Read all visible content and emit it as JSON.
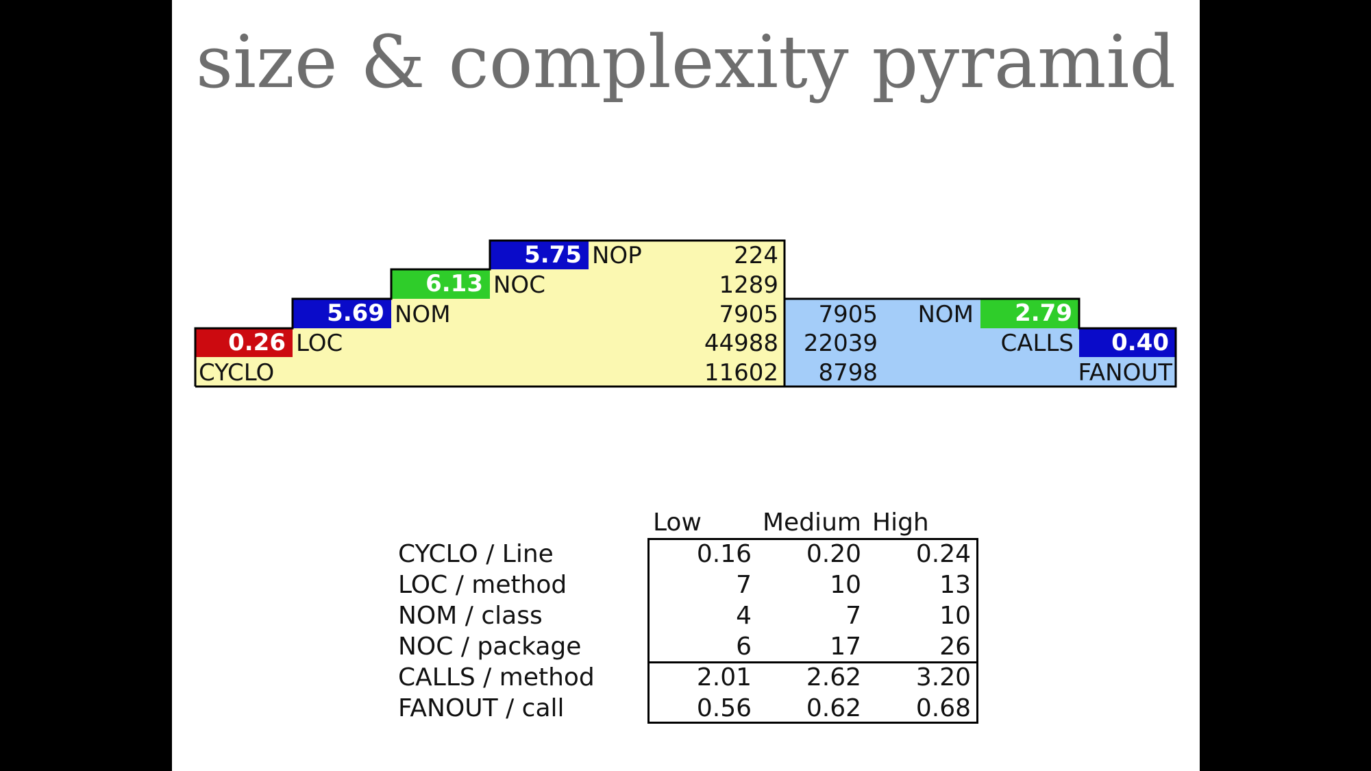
{
  "title": "size & complexity pyramid",
  "pyramid": {
    "left": {
      "NOP": {
        "label": "NOP",
        "value": "224",
        "ratio": "5.75"
      },
      "NOC": {
        "label": "NOC",
        "value": "1289",
        "ratio": "6.13"
      },
      "NOM": {
        "label": "NOM",
        "value": "7905",
        "ratio": "5.69"
      },
      "LOC": {
        "label": "LOC",
        "value": "44988",
        "ratio": "0.26"
      },
      "CYCLO": {
        "label": "CYCLO",
        "value": "11602"
      }
    },
    "right": {
      "NOM": {
        "label": "NOM",
        "value": "7905",
        "ratio": "2.79"
      },
      "CALLS": {
        "label": "CALLS",
        "value": "22039",
        "ratio": "0.40"
      },
      "FANOUT": {
        "label": "FANOUT",
        "value": "8798"
      }
    }
  },
  "colors": {
    "blue": "#0a0bc9",
    "green": "#2fcd2a",
    "red": "#cc0a10",
    "yellow": "#fbf8b1",
    "lightblue": "#a4cdf9"
  },
  "thresholds": {
    "headers": [
      "Low",
      "Medium",
      "High"
    ],
    "rows": [
      {
        "label": "CYCLO / Line",
        "low": "0.16",
        "medium": "0.20",
        "high": "0.24"
      },
      {
        "label": "LOC / method",
        "low": "7",
        "medium": "10",
        "high": "13"
      },
      {
        "label": "NOM / class",
        "low": "4",
        "medium": "7",
        "high": "10"
      },
      {
        "label": "NOC / package",
        "low": "6",
        "medium": "17",
        "high": "26"
      },
      {
        "label": "CALLS / method",
        "low": "2.01",
        "medium": "2.62",
        "high": "3.20"
      },
      {
        "label": "FANOUT / call",
        "low": "0.56",
        "medium": "0.62",
        "high": "0.68"
      }
    ]
  }
}
